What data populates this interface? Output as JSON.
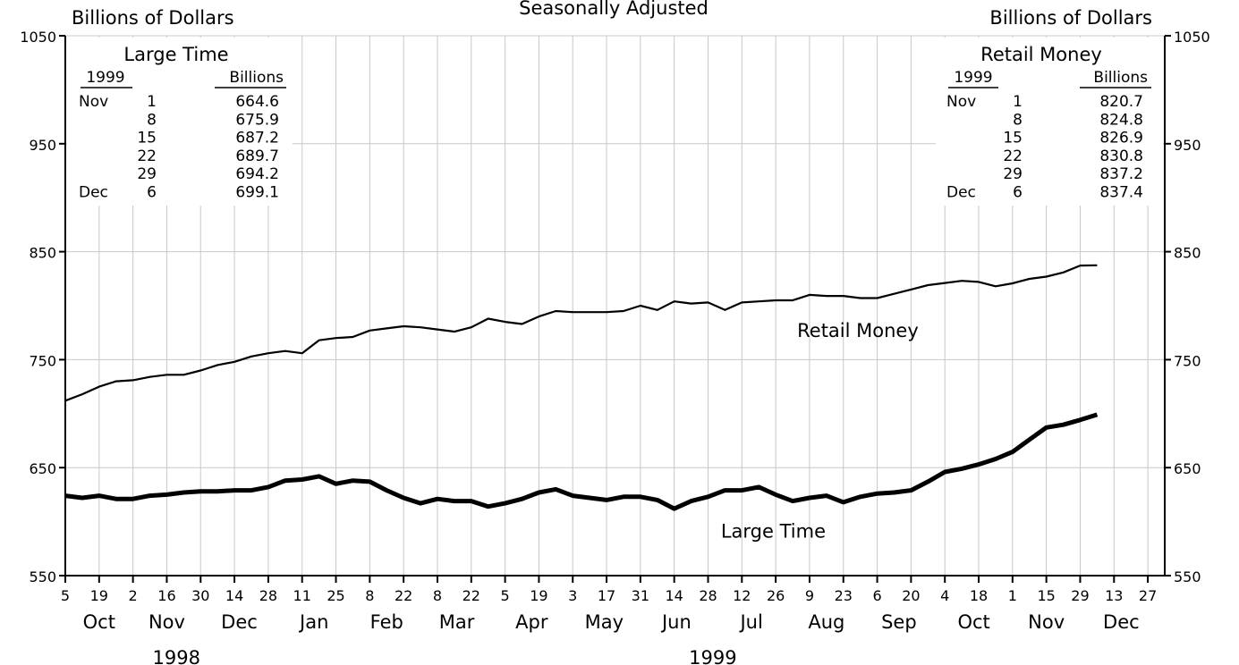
{
  "chart_data": {
    "type": "line",
    "title": "Seasonally Adjusted",
    "y_label_left": "Billions of Dollars",
    "y_label_right": "Billions of Dollars",
    "ylim": [
      550,
      1050
    ],
    "y_ticks": [
      "550",
      "650",
      "750",
      "850",
      "950",
      "1050"
    ],
    "xlim": [
      "1998-10-05",
      "2000-01-03"
    ],
    "x_tick_dates": [
      "1998-10-05",
      "1998-10-19",
      "1998-11-02",
      "1998-11-16",
      "1998-11-30",
      "1998-12-14",
      "1998-12-28",
      "1999-01-11",
      "1999-01-25",
      "1999-02-08",
      "1999-02-22",
      "1999-03-08",
      "1999-03-22",
      "1999-04-05",
      "1999-04-19",
      "1999-05-03",
      "1999-05-17",
      "1999-05-31",
      "1999-06-14",
      "1999-06-28",
      "1999-07-12",
      "1999-07-26",
      "1999-08-09",
      "1999-08-23",
      "1999-09-06",
      "1999-09-20",
      "1999-10-04",
      "1999-10-18",
      "1999-11-01",
      "1999-11-15",
      "1999-11-29",
      "1999-12-13",
      "1999-12-27"
    ],
    "x_tick_labels": [
      "5",
      "19",
      "2",
      "16",
      "30",
      "14",
      "28",
      "11",
      "25",
      "8",
      "22",
      "8",
      "22",
      "5",
      "19",
      "3",
      "17",
      "31",
      "14",
      "28",
      "12",
      "26",
      "9",
      "23",
      "6",
      "20",
      "4",
      "18",
      "1",
      "15",
      "29",
      "13",
      "27"
    ],
    "month_labels": [
      {
        "label": "Oct",
        "date": "1998-10-19"
      },
      {
        "label": "Nov",
        "date": "1998-11-16"
      },
      {
        "label": "Dec",
        "date": "1998-12-16"
      },
      {
        "label": "Jan",
        "date": "1999-01-16"
      },
      {
        "label": "Feb",
        "date": "1999-02-15"
      },
      {
        "label": "Mar",
        "date": "1999-03-16"
      },
      {
        "label": "Apr",
        "date": "1999-04-16"
      },
      {
        "label": "May",
        "date": "1999-05-16"
      },
      {
        "label": "Jun",
        "date": "1999-06-15"
      },
      {
        "label": "Jul",
        "date": "1999-07-16"
      },
      {
        "label": "Aug",
        "date": "1999-08-16"
      },
      {
        "label": "Sep",
        "date": "1999-09-15"
      },
      {
        "label": "Oct",
        "date": "1999-10-16"
      },
      {
        "label": "Nov",
        "date": "1999-11-15"
      },
      {
        "label": "Dec",
        "date": "1999-12-16"
      }
    ],
    "year_labels": [
      {
        "label": "1998",
        "date": "1998-11-20"
      },
      {
        "label": "1999",
        "date": "1999-06-30"
      }
    ],
    "series": [
      {
        "name": "Retail Money",
        "line_weight": "thin",
        "label_date": "1999-08-29",
        "label_value": 771,
        "x": [
          "1998-10-05",
          "1998-10-12",
          "1998-10-19",
          "1998-10-26",
          "1998-11-02",
          "1998-11-09",
          "1998-11-16",
          "1998-11-23",
          "1998-11-30",
          "1998-12-07",
          "1998-12-14",
          "1998-12-21",
          "1998-12-28",
          "1999-01-04",
          "1999-01-11",
          "1999-01-18",
          "1999-01-25",
          "1999-02-01",
          "1999-02-08",
          "1999-02-15",
          "1999-02-22",
          "1999-03-01",
          "1999-03-08",
          "1999-03-15",
          "1999-03-22",
          "1999-03-29",
          "1999-04-05",
          "1999-04-12",
          "1999-04-19",
          "1999-04-26",
          "1999-05-03",
          "1999-05-10",
          "1999-05-17",
          "1999-05-24",
          "1999-05-31",
          "1999-06-07",
          "1999-06-14",
          "1999-06-21",
          "1999-06-28",
          "1999-07-05",
          "1999-07-12",
          "1999-07-19",
          "1999-07-26",
          "1999-08-02",
          "1999-08-09",
          "1999-08-16",
          "1999-08-23",
          "1999-08-30",
          "1999-09-06",
          "1999-09-13",
          "1999-09-20",
          "1999-09-27",
          "1999-10-04",
          "1999-10-11",
          "1999-10-18",
          "1999-10-25",
          "1999-11-01",
          "1999-11-08",
          "1999-11-15",
          "1999-11-22",
          "1999-11-29",
          "1999-12-06"
        ],
        "values": [
          712,
          718,
          725,
          730,
          731,
          734,
          736,
          736,
          740,
          745,
          748,
          753,
          756,
          758,
          756,
          768,
          770,
          771,
          777,
          779,
          781,
          780,
          778,
          776,
          780,
          788,
          785,
          783,
          790,
          795,
          794,
          794,
          794,
          795,
          800,
          796,
          804,
          802,
          803,
          796,
          803,
          804,
          805,
          805,
          810,
          809,
          809,
          807,
          807,
          811,
          815,
          819,
          821,
          823,
          822,
          818,
          820.7,
          824.8,
          826.9,
          830.8,
          837.2,
          837.4
        ]
      },
      {
        "name": "Large Time",
        "line_weight": "thick",
        "label_date": "1999-07-25",
        "label_value": 585,
        "x": [
          "1998-10-05",
          "1998-10-12",
          "1998-10-19",
          "1998-10-26",
          "1998-11-02",
          "1998-11-09",
          "1998-11-16",
          "1998-11-23",
          "1998-11-30",
          "1998-12-07",
          "1998-12-14",
          "1998-12-21",
          "1998-12-28",
          "1999-01-04",
          "1999-01-11",
          "1999-01-18",
          "1999-01-25",
          "1999-02-01",
          "1999-02-08",
          "1999-02-15",
          "1999-02-22",
          "1999-03-01",
          "1999-03-08",
          "1999-03-15",
          "1999-03-22",
          "1999-03-29",
          "1999-04-05",
          "1999-04-12",
          "1999-04-19",
          "1999-04-26",
          "1999-05-03",
          "1999-05-10",
          "1999-05-17",
          "1999-05-24",
          "1999-05-31",
          "1999-06-07",
          "1999-06-14",
          "1999-06-21",
          "1999-06-28",
          "1999-07-05",
          "1999-07-12",
          "1999-07-19",
          "1999-07-26",
          "1999-08-02",
          "1999-08-09",
          "1999-08-16",
          "1999-08-23",
          "1999-08-30",
          "1999-09-06",
          "1999-09-13",
          "1999-09-20",
          "1999-09-27",
          "1999-10-04",
          "1999-10-11",
          "1999-10-18",
          "1999-10-25",
          "1999-11-01",
          "1999-11-08",
          "1999-11-15",
          "1999-11-22",
          "1999-11-29",
          "1999-12-06"
        ],
        "values": [
          624,
          622,
          624,
          621,
          621,
          624,
          625,
          627,
          628,
          628,
          629,
          629,
          632,
          638,
          639,
          642,
          635,
          638,
          637,
          629,
          622,
          617,
          621,
          619,
          619,
          614,
          617,
          621,
          627,
          630,
          624,
          622,
          620,
          623,
          623,
          620,
          612,
          619,
          623,
          629,
          629,
          632,
          625,
          619,
          622,
          624,
          618,
          623,
          626,
          627,
          629,
          637,
          646,
          649,
          653,
          658,
          664.6,
          675.9,
          687.2,
          689.7,
          694.2,
          699.1
        ]
      }
    ],
    "tables": [
      {
        "title": "Large Time",
        "col1_header": "1999",
        "col2_header": "Billions",
        "rows": [
          {
            "month": "Nov",
            "day": "1",
            "value": "664.6"
          },
          {
            "month": "",
            "day": "8",
            "value": "675.9"
          },
          {
            "month": "",
            "day": "15",
            "value": "687.2"
          },
          {
            "month": "",
            "day": "22",
            "value": "689.7"
          },
          {
            "month": "",
            "day": "29",
            "value": "694.2"
          },
          {
            "month": "Dec",
            "day": "6",
            "value": "699.1"
          }
        ]
      },
      {
        "title": "Retail Money",
        "col1_header": "1999",
        "col2_header": "Billions",
        "rows": [
          {
            "month": "Nov",
            "day": "1",
            "value": "820.7"
          },
          {
            "month": "",
            "day": "8",
            "value": "824.8"
          },
          {
            "month": "",
            "day": "15",
            "value": "826.9"
          },
          {
            "month": "",
            "day": "22",
            "value": "830.8"
          },
          {
            "month": "",
            "day": "29",
            "value": "837.2"
          },
          {
            "month": "Dec",
            "day": "6",
            "value": "837.4"
          }
        ]
      }
    ],
    "grid": true,
    "line_color": "#000000",
    "grid_color": "#c8c8c8"
  }
}
